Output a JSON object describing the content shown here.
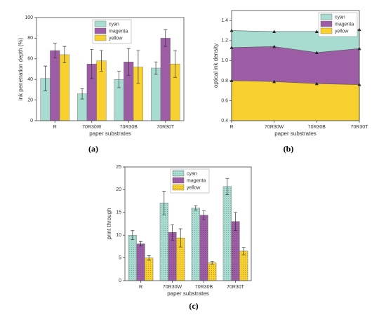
{
  "chart_data": [
    {
      "type": "bar",
      "panel_label": "(a)",
      "xlabel": "paper substrates",
      "ylabel": "ink penetration depth (%)",
      "categories": [
        "R",
        "70R30W",
        "70R30B",
        "70R30T"
      ],
      "series": [
        {
          "name": "cyan",
          "color": "#a8dcd1",
          "values": [
            41,
            26,
            40,
            51
          ],
          "errors": [
            12,
            5,
            8,
            6
          ]
        },
        {
          "name": "magenta",
          "color": "#9c5da5",
          "values": [
            68,
            55,
            57,
            80
          ],
          "errors": [
            7,
            14,
            13,
            8
          ]
        },
        {
          "name": "yellow",
          "color": "#f8d030",
          "values": [
            64,
            58,
            52,
            55
          ],
          "errors": [
            8,
            10,
            16,
            13
          ]
        }
      ],
      "ylim": [
        0,
        100
      ],
      "yticks": [
        0,
        20,
        40,
        60,
        80,
        100
      ],
      "legend": "upper center",
      "hatch": false
    },
    {
      "type": "area",
      "panel_label": "(b)",
      "xlabel": "paper substrates",
      "ylabel": "optical ink density",
      "categories": [
        "R",
        "70R30W",
        "70R30B",
        "70R30T"
      ],
      "series": [
        {
          "name": "cyan",
          "color": "#a8dcd1",
          "values": [
            1.3,
            1.29,
            1.29,
            1.31
          ]
        },
        {
          "name": "magenta",
          "color": "#9c5da5",
          "values": [
            1.13,
            1.14,
            1.08,
            1.12
          ]
        },
        {
          "name": "yellow",
          "color": "#f8d030",
          "values": [
            0.8,
            0.79,
            0.77,
            0.76
          ]
        }
      ],
      "ylim": [
        0.4,
        1.5
      ],
      "yticks": [
        0.4,
        0.6,
        0.8,
        {
          "value": 1.0,
          "label": "1.0"
        },
        1.2,
        1.4
      ],
      "legend": "upper right"
    },
    {
      "type": "bar",
      "panel_label": "(c)",
      "xlabel": "paper substrates",
      "ylabel": "print through",
      "categories": [
        "R",
        "70R30W",
        "70R30B",
        "70R30T"
      ],
      "series": [
        {
          "name": "cyan",
          "color": "#a8dcd1",
          "values": [
            10,
            17.1,
            16,
            20.7
          ],
          "errors": [
            1,
            2.6,
            0.5,
            1.8
          ]
        },
        {
          "name": "magenta",
          "color": "#9c5da5",
          "values": [
            8.1,
            10.6,
            14.4,
            13
          ],
          "errors": [
            0.5,
            1.7,
            1,
            2
          ]
        },
        {
          "name": "yellow",
          "color": "#f8d030",
          "values": [
            5,
            9.4,
            3.9,
            6.5
          ],
          "errors": [
            0.5,
            2,
            0.3,
            0.8
          ]
        }
      ],
      "ylim": [
        0,
        25
      ],
      "yticks": [
        0,
        5,
        10,
        15,
        20,
        25
      ],
      "legend": "upper center",
      "hatch": true
    }
  ]
}
